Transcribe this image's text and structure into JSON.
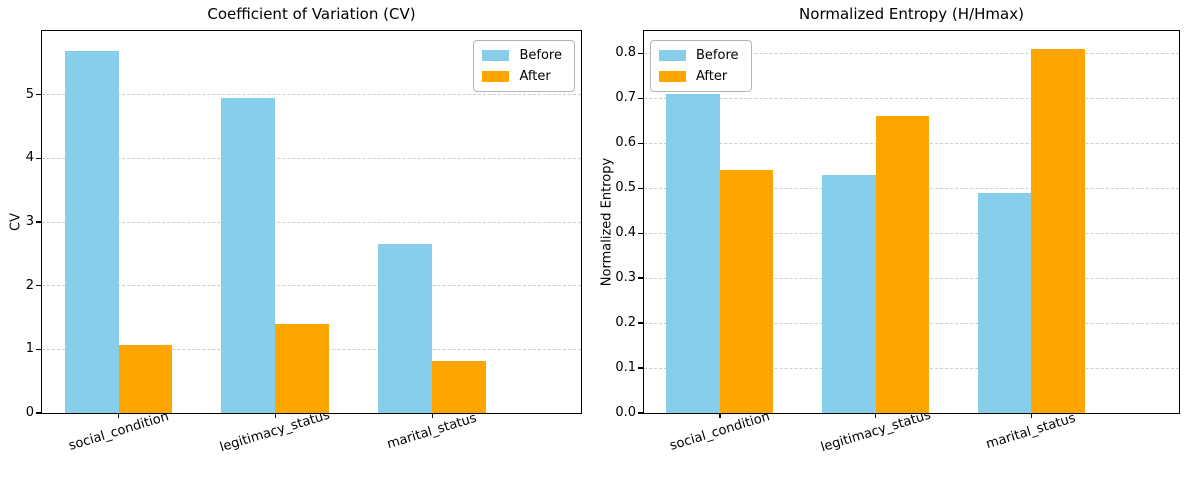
{
  "figure": {
    "background": "#ffffff",
    "grid_color": "#cdcdcd",
    "spine_color": "#000000"
  },
  "chart_data": [
    {
      "type": "bar",
      "title": "Coefficient of Variation (CV)",
      "ylabel": "CV",
      "xlabel": "",
      "categories": [
        "social_condition",
        "legitimacy_status",
        "marital_status"
      ],
      "series": [
        {
          "name": "Before",
          "color": "#87CEEB",
          "values": [
            5.68,
            4.95,
            2.66
          ]
        },
        {
          "name": "After",
          "color": "#FFA500",
          "values": [
            1.07,
            1.4,
            0.82
          ]
        }
      ],
      "ylim": [
        0,
        6.0
      ],
      "yticks": [
        0,
        1,
        2,
        3,
        4,
        5
      ],
      "ytick_labels": [
        "0",
        "1",
        "2",
        "3",
        "4",
        "5"
      ],
      "grid": "horizontal-dashed",
      "legend_position": "top-right",
      "xtick_rotation_deg": 17
    },
    {
      "type": "bar",
      "title": "Normalized Entropy (H/Hmax)",
      "ylabel": "Normalized Entropy",
      "xlabel": "",
      "categories": [
        "social_condition",
        "legitimacy_status",
        "marital_status"
      ],
      "series": [
        {
          "name": "Before",
          "color": "#87CEEB",
          "values": [
            0.71,
            0.53,
            0.49
          ]
        },
        {
          "name": "After",
          "color": "#FFA500",
          "values": [
            0.54,
            0.66,
            0.81
          ]
        }
      ],
      "ylim": [
        0,
        0.85
      ],
      "yticks": [
        0,
        0.1,
        0.2,
        0.3,
        0.4,
        0.5,
        0.6,
        0.7,
        0.8
      ],
      "ytick_labels": [
        "0.0",
        "0.1",
        "0.2",
        "0.3",
        "0.4",
        "0.5",
        "0.6",
        "0.7",
        "0.8"
      ],
      "grid": "horizontal-dashed",
      "legend_position": "top-left",
      "xtick_rotation_deg": 17
    }
  ]
}
